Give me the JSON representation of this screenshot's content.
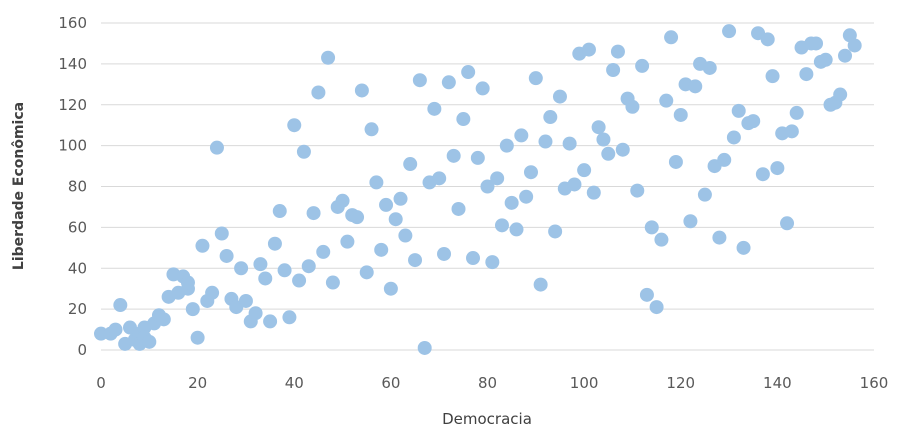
{
  "chart_data": {
    "type": "scatter",
    "title": "",
    "xlabel": "Democracia",
    "ylabel": "Liberdade Econômica",
    "xlim": [
      0,
      160
    ],
    "ylim": [
      0,
      160
    ],
    "xticks": [
      0,
      20,
      40,
      60,
      80,
      100,
      120,
      140,
      160
    ],
    "yticks": [
      0,
      20,
      40,
      60,
      80,
      100,
      120,
      140,
      160
    ],
    "grid": "horizontal",
    "legend": "none",
    "marker_color": "#9dc3e6",
    "points": [
      [
        0,
        8
      ],
      [
        2,
        8
      ],
      [
        3,
        10
      ],
      [
        4,
        22
      ],
      [
        5,
        3
      ],
      [
        6,
        11
      ],
      [
        7,
        5
      ],
      [
        8,
        8
      ],
      [
        8,
        3
      ],
      [
        9,
        11
      ],
      [
        9,
        6
      ],
      [
        10,
        4
      ],
      [
        11,
        13
      ],
      [
        12,
        17
      ],
      [
        13,
        15
      ],
      [
        14,
        26
      ],
      [
        15,
        37
      ],
      [
        16,
        28
      ],
      [
        17,
        36
      ],
      [
        18,
        30
      ],
      [
        18,
        33
      ],
      [
        19,
        20
      ],
      [
        20,
        6
      ],
      [
        21,
        51
      ],
      [
        22,
        24
      ],
      [
        23,
        28
      ],
      [
        24,
        99
      ],
      [
        25,
        57
      ],
      [
        26,
        46
      ],
      [
        27,
        25
      ],
      [
        28,
        21
      ],
      [
        29,
        40
      ],
      [
        30,
        24
      ],
      [
        31,
        14
      ],
      [
        32,
        18
      ],
      [
        33,
        42
      ],
      [
        34,
        35
      ],
      [
        35,
        14
      ],
      [
        36,
        52
      ],
      [
        37,
        68
      ],
      [
        38,
        39
      ],
      [
        39,
        16
      ],
      [
        40,
        110
      ],
      [
        41,
        34
      ],
      [
        42,
        97
      ],
      [
        43,
        41
      ],
      [
        44,
        67
      ],
      [
        45,
        126
      ],
      [
        46,
        48
      ],
      [
        47,
        143
      ],
      [
        48,
        33
      ],
      [
        49,
        70
      ],
      [
        50,
        73
      ],
      [
        51,
        53
      ],
      [
        52,
        66
      ],
      [
        53,
        65
      ],
      [
        54,
        127
      ],
      [
        55,
        38
      ],
      [
        56,
        108
      ],
      [
        57,
        82
      ],
      [
        58,
        49
      ],
      [
        59,
        71
      ],
      [
        60,
        30
      ],
      [
        61,
        64
      ],
      [
        62,
        74
      ],
      [
        63,
        56
      ],
      [
        64,
        91
      ],
      [
        65,
        44
      ],
      [
        66,
        132
      ],
      [
        67,
        1
      ],
      [
        68,
        82
      ],
      [
        69,
        118
      ],
      [
        70,
        84
      ],
      [
        71,
        47
      ],
      [
        72,
        131
      ],
      [
        73,
        95
      ],
      [
        74,
        69
      ],
      [
        75,
        113
      ],
      [
        76,
        136
      ],
      [
        77,
        45
      ],
      [
        78,
        94
      ],
      [
        79,
        128
      ],
      [
        80,
        80
      ],
      [
        81,
        43
      ],
      [
        82,
        84
      ],
      [
        83,
        61
      ],
      [
        84,
        100
      ],
      [
        85,
        72
      ],
      [
        86,
        59
      ],
      [
        87,
        105
      ],
      [
        88,
        75
      ],
      [
        89,
        87
      ],
      [
        90,
        133
      ],
      [
        91,
        32
      ],
      [
        92,
        102
      ],
      [
        93,
        114
      ],
      [
        94,
        58
      ],
      [
        95,
        124
      ],
      [
        96,
        79
      ],
      [
        97,
        101
      ],
      [
        98,
        81
      ],
      [
        99,
        145
      ],
      [
        100,
        88
      ],
      [
        101,
        147
      ],
      [
        102,
        77
      ],
      [
        103,
        109
      ],
      [
        104,
        103
      ],
      [
        105,
        96
      ],
      [
        106,
        137
      ],
      [
        107,
        146
      ],
      [
        108,
        98
      ],
      [
        109,
        123
      ],
      [
        110,
        119
      ],
      [
        111,
        78
      ],
      [
        112,
        139
      ],
      [
        113,
        27
      ],
      [
        114,
        60
      ],
      [
        115,
        21
      ],
      [
        116,
        54
      ],
      [
        117,
        122
      ],
      [
        118,
        153
      ],
      [
        119,
        92
      ],
      [
        120,
        115
      ],
      [
        121,
        130
      ],
      [
        122,
        63
      ],
      [
        123,
        129
      ],
      [
        124,
        140
      ],
      [
        125,
        76
      ],
      [
        126,
        138
      ],
      [
        127,
        90
      ],
      [
        128,
        55
      ],
      [
        129,
        93
      ],
      [
        130,
        156
      ],
      [
        131,
        104
      ],
      [
        132,
        117
      ],
      [
        133,
        50
      ],
      [
        134,
        111
      ],
      [
        135,
        112
      ],
      [
        136,
        155
      ],
      [
        137,
        86
      ],
      [
        138,
        152
      ],
      [
        139,
        134
      ],
      [
        140,
        89
      ],
      [
        141,
        106
      ],
      [
        142,
        62
      ],
      [
        143,
        107
      ],
      [
        144,
        116
      ],
      [
        145,
        148
      ],
      [
        146,
        135
      ],
      [
        147,
        150
      ],
      [
        148,
        150
      ],
      [
        149,
        141
      ],
      [
        150,
        142
      ],
      [
        151,
        120
      ],
      [
        152,
        121
      ],
      [
        153,
        125
      ],
      [
        154,
        144
      ],
      [
        155,
        154
      ],
      [
        156,
        149
      ]
    ]
  }
}
